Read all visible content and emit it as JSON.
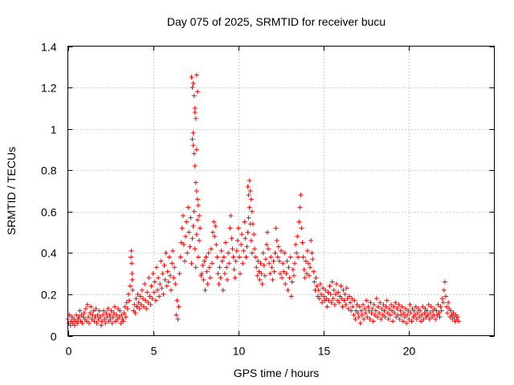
{
  "chart_data": {
    "type": "scatter",
    "title": "Day 075 of 2025, SRMTID for receiver bucu",
    "xlabel": "GPS time / hours",
    "ylabel": "SRMTID / TECUs",
    "xlim": [
      0,
      25
    ],
    "ylim": [
      0,
      1.4
    ],
    "xticks": [
      0,
      5,
      10,
      15,
      20
    ],
    "xtick_labels": [
      "0",
      "5",
      "10",
      "15",
      "20"
    ],
    "yticks": [
      0,
      0.2,
      0.4,
      0.6,
      0.8,
      1.0,
      1.2,
      1.4
    ],
    "ytick_labels": [
      "0",
      "0.2",
      "0.4",
      "0.6",
      "0.8",
      "1",
      "1.2",
      "1.4"
    ],
    "grid": true,
    "marker": "plus",
    "series": [
      {
        "name": "bucu",
        "color": "#ff0000",
        "x": [
          0.0,
          0.05,
          0.1,
          0.15,
          0.2,
          0.25,
          0.3,
          0.35,
          0.4,
          0.45,
          0.5,
          0.55,
          0.6,
          0.65,
          0.7,
          0.75,
          0.8,
          0.85,
          0.9,
          0.95,
          1.0,
          1.05,
          1.1,
          1.15,
          1.2,
          1.25,
          1.3,
          1.35,
          1.4,
          1.45,
          1.5,
          1.55,
          1.6,
          1.65,
          1.7,
          1.75,
          1.8,
          1.85,
          1.9,
          1.95,
          2.0,
          2.05,
          2.1,
          2.15,
          2.2,
          2.25,
          2.3,
          2.35,
          2.4,
          2.45,
          2.5,
          2.55,
          2.6,
          2.65,
          2.7,
          2.75,
          2.8,
          2.85,
          2.9,
          2.95,
          3.0,
          3.05,
          3.1,
          3.15,
          3.2,
          3.25,
          3.3,
          3.35,
          3.4,
          3.45,
          3.5,
          3.55,
          3.6,
          3.65,
          3.7,
          3.72,
          3.74,
          3.76,
          3.78,
          3.8,
          3.85,
          3.9,
          3.95,
          4.0,
          4.05,
          4.1,
          4.15,
          4.2,
          4.25,
          4.3,
          4.35,
          4.4,
          4.45,
          4.5,
          4.55,
          4.6,
          4.65,
          4.7,
          4.75,
          4.8,
          4.85,
          4.9,
          4.95,
          5.0,
          5.05,
          5.1,
          5.15,
          5.2,
          5.25,
          5.3,
          5.35,
          5.4,
          5.45,
          5.5,
          5.55,
          5.6,
          5.65,
          5.7,
          5.75,
          5.8,
          5.85,
          5.9,
          5.95,
          6.0,
          6.05,
          6.1,
          6.15,
          6.2,
          6.25,
          6.3,
          6.35,
          6.4,
          6.45,
          6.5,
          6.55,
          6.6,
          6.65,
          6.7,
          6.75,
          6.8,
          6.85,
          6.9,
          6.95,
          7.0,
          7.05,
          7.1,
          7.15,
          7.2,
          7.25,
          7.3,
          7.35,
          7.4,
          7.45,
          7.5,
          7.55,
          7.6,
          7.65,
          7.7,
          7.75,
          7.8,
          7.25,
          7.3,
          7.35,
          7.4,
          7.45,
          7.5,
          7.55,
          7.6,
          7.3,
          7.35,
          7.4,
          7.45,
          7.5,
          7.55,
          7.6,
          7.65,
          7.7,
          7.35,
          7.45,
          7.55,
          7.85,
          7.9,
          7.95,
          8.0,
          8.05,
          8.1,
          8.15,
          8.2,
          8.25,
          8.3,
          8.35,
          8.4,
          8.45,
          8.5,
          8.55,
          8.6,
          8.65,
          8.7,
          8.75,
          8.8,
          8.85,
          8.9,
          8.95,
          9.0,
          9.05,
          9.1,
          9.15,
          9.2,
          9.25,
          9.3,
          9.35,
          9.4,
          9.45,
          9.5,
          9.55,
          9.6,
          9.65,
          9.7,
          9.75,
          9.8,
          9.85,
          9.9,
          9.95,
          10.0,
          10.05,
          10.1,
          10.15,
          10.2,
          10.25,
          10.3,
          10.35,
          10.4,
          10.45,
          10.5,
          10.55,
          10.6,
          10.65,
          10.7,
          10.75,
          10.8,
          10.55,
          10.6,
          10.65,
          10.7,
          10.75,
          10.8,
          10.85,
          10.9,
          10.95,
          11.0,
          11.05,
          11.1,
          11.15,
          11.2,
          11.25,
          11.3,
          11.35,
          11.4,
          11.45,
          11.5,
          11.55,
          11.6,
          11.65,
          11.7,
          11.75,
          11.8,
          11.85,
          11.9,
          11.95,
          12.0,
          12.05,
          12.1,
          12.15,
          12.2,
          12.25,
          12.3,
          12.35,
          12.4,
          12.45,
          12.5,
          12.55,
          12.6,
          12.65,
          12.7,
          12.75,
          12.8,
          12.85,
          12.9,
          12.95,
          13.0,
          13.05,
          13.1,
          13.15,
          13.2,
          13.25,
          13.3,
          13.35,
          13.4,
          13.45,
          13.5,
          13.55,
          13.6,
          13.65,
          13.7,
          13.75,
          13.8,
          13.85,
          13.9,
          13.95,
          14.0,
          14.05,
          14.1,
          14.15,
          14.2,
          14.25,
          14.3,
          14.35,
          14.4,
          14.45,
          14.5,
          14.55,
          14.6,
          14.65,
          14.7,
          14.75,
          14.8,
          14.85,
          14.9,
          14.95,
          15.0,
          15.05,
          15.1,
          15.15,
          15.2,
          15.25,
          15.3,
          15.35,
          15.4,
          15.45,
          15.5,
          15.55,
          15.6,
          15.65,
          15.7,
          15.75,
          15.8,
          15.85,
          15.9,
          15.95,
          16.0,
          16.05,
          16.1,
          16.15,
          16.2,
          16.25,
          16.3,
          16.35,
          16.4,
          16.45,
          16.5,
          16.55,
          16.6,
          16.65,
          16.7,
          16.75,
          16.8,
          16.85,
          16.9,
          16.95,
          17.0,
          17.05,
          17.1,
          17.15,
          17.2,
          17.25,
          17.3,
          17.35,
          17.4,
          17.45,
          17.5,
          17.55,
          17.6,
          17.65,
          17.7,
          17.75,
          17.8,
          17.85,
          17.9,
          17.95,
          18.0,
          18.05,
          18.1,
          18.15,
          18.2,
          18.25,
          18.3,
          18.35,
          18.4,
          18.45,
          18.5,
          18.55,
          18.6,
          18.65,
          18.7,
          18.75,
          18.8,
          18.85,
          18.9,
          18.95,
          19.0,
          19.05,
          19.1,
          19.15,
          19.2,
          19.25,
          19.3,
          19.35,
          19.4,
          19.45,
          19.5,
          19.55,
          19.6,
          19.65,
          19.7,
          19.75,
          19.8,
          19.85,
          19.9,
          19.95,
          20.0,
          20.05,
          20.1,
          20.15,
          20.2,
          20.25,
          20.3,
          20.35,
          20.4,
          20.45,
          20.5,
          20.55,
          20.6,
          20.65,
          20.7,
          20.75,
          20.8,
          20.85,
          20.9,
          20.95,
          21.0,
          21.05,
          21.1,
          21.15,
          21.2,
          21.25,
          21.3,
          21.35,
          21.4,
          21.45,
          21.5,
          21.55,
          21.6,
          21.65,
          21.7,
          21.75,
          21.8,
          21.85,
          21.9,
          21.95,
          22.0,
          22.05,
          22.1,
          22.15,
          22.2,
          22.25,
          22.3,
          22.35,
          22.4,
          22.45,
          22.5,
          22.55,
          22.6,
          22.65,
          22.7,
          22.75,
          22.8,
          22.85,
          22.9
        ],
        "y": [
          0.08,
          0.06,
          0.1,
          0.05,
          0.07,
          0.09,
          0.06,
          0.08,
          0.05,
          0.07,
          0.1,
          0.06,
          0.08,
          0.09,
          0.12,
          0.07,
          0.1,
          0.06,
          0.09,
          0.11,
          0.08,
          0.13,
          0.07,
          0.15,
          0.09,
          0.06,
          0.11,
          0.14,
          0.08,
          0.1,
          0.12,
          0.07,
          0.09,
          0.13,
          0.06,
          0.1,
          0.08,
          0.12,
          0.09,
          0.05,
          0.07,
          0.1,
          0.12,
          0.08,
          0.06,
          0.11,
          0.09,
          0.13,
          0.07,
          0.1,
          0.08,
          0.12,
          0.06,
          0.09,
          0.11,
          0.14,
          0.07,
          0.1,
          0.08,
          0.13,
          0.09,
          0.12,
          0.06,
          0.1,
          0.08,
          0.07,
          0.11,
          0.14,
          0.09,
          0.16,
          0.13,
          0.2,
          0.17,
          0.24,
          0.38,
          0.41,
          0.35,
          0.3,
          0.27,
          0.22,
          0.12,
          0.15,
          0.11,
          0.18,
          0.14,
          0.2,
          0.16,
          0.13,
          0.19,
          0.15,
          0.22,
          0.18,
          0.14,
          0.25,
          0.17,
          0.13,
          0.21,
          0.16,
          0.28,
          0.19,
          0.15,
          0.24,
          0.18,
          0.3,
          0.21,
          0.26,
          0.17,
          0.33,
          0.22,
          0.28,
          0.19,
          0.25,
          0.36,
          0.23,
          0.3,
          0.2,
          0.34,
          0.27,
          0.4,
          0.24,
          0.31,
          0.26,
          0.38,
          0.29,
          0.22,
          0.35,
          0.41,
          0.28,
          0.33,
          0.25,
          0.1,
          0.17,
          0.08,
          0.14,
          0.3,
          0.38,
          0.45,
          0.52,
          0.58,
          0.44,
          0.36,
          0.48,
          0.55,
          0.4,
          0.62,
          0.5,
          0.43,
          0.57,
          0.35,
          0.47,
          0.53,
          0.6,
          0.42,
          0.33,
          0.49,
          0.56,
          0.38,
          0.46,
          0.52,
          0.29,
          1.25,
          1.2,
          1.22,
          1.16,
          1.1,
          1.05,
          1.26,
          1.18,
          0.95,
          0.92,
          0.88,
          0.82,
          0.74,
          0.7,
          0.66,
          0.63,
          0.58,
          0.98,
          1.08,
          0.9,
          0.3,
          0.34,
          0.27,
          0.36,
          0.22,
          0.38,
          0.31,
          0.25,
          0.4,
          0.33,
          0.28,
          0.42,
          0.35,
          0.5,
          0.55,
          0.48,
          0.53,
          0.44,
          0.38,
          0.3,
          0.25,
          0.33,
          0.28,
          0.41,
          0.36,
          0.22,
          0.38,
          0.3,
          0.45,
          0.33,
          0.27,
          0.4,
          0.35,
          0.52,
          0.58,
          0.47,
          0.42,
          0.38,
          0.32,
          0.28,
          0.36,
          0.41,
          0.46,
          0.52,
          0.38,
          0.3,
          0.44,
          0.49,
          0.35,
          0.41,
          0.55,
          0.47,
          0.38,
          0.43,
          0.5,
          0.57,
          0.62,
          0.54,
          0.46,
          0.4,
          0.72,
          0.68,
          0.75,
          0.7,
          0.66,
          0.6,
          0.54,
          0.49,
          0.42,
          0.38,
          0.33,
          0.29,
          0.36,
          0.31,
          0.27,
          0.35,
          0.3,
          0.25,
          0.4,
          0.34,
          0.29,
          0.37,
          0.44,
          0.5,
          0.42,
          0.35,
          0.3,
          0.38,
          0.33,
          0.27,
          0.36,
          0.31,
          0.4,
          0.52,
          0.46,
          0.38,
          0.43,
          0.36,
          0.3,
          0.41,
          0.28,
          0.35,
          0.31,
          0.4,
          0.25,
          0.3,
          0.36,
          0.22,
          0.33,
          0.28,
          0.38,
          0.19,
          0.26,
          0.32,
          0.29,
          0.35,
          0.44,
          0.4,
          0.48,
          0.38,
          0.55,
          0.62,
          0.68,
          0.52,
          0.45,
          0.38,
          0.32,
          0.28,
          0.36,
          0.3,
          0.41,
          0.35,
          0.29,
          0.33,
          0.46,
          0.4,
          0.37,
          0.31,
          0.26,
          0.22,
          0.28,
          0.24,
          0.19,
          0.22,
          0.18,
          0.25,
          0.2,
          0.16,
          0.23,
          0.19,
          0.17,
          0.22,
          0.18,
          0.14,
          0.21,
          0.17,
          0.24,
          0.2,
          0.16,
          0.26,
          0.18,
          0.22,
          0.15,
          0.2,
          0.25,
          0.17,
          0.21,
          0.16,
          0.19,
          0.24,
          0.18,
          0.14,
          0.22,
          0.17,
          0.2,
          0.15,
          0.23,
          0.18,
          0.13,
          0.19,
          0.16,
          0.12,
          0.18,
          0.14,
          0.1,
          0.17,
          0.08,
          0.12,
          0.15,
          0.11,
          0.09,
          0.14,
          0.06,
          0.12,
          0.1,
          0.15,
          0.08,
          0.13,
          0.11,
          0.17,
          0.09,
          0.14,
          0.12,
          0.08,
          0.16,
          0.11,
          0.13,
          0.07,
          0.15,
          0.1,
          0.12,
          0.18,
          0.09,
          0.14,
          0.11,
          0.16,
          0.08,
          0.13,
          0.1,
          0.15,
          0.12,
          0.09,
          0.14,
          0.17,
          0.11,
          0.08,
          0.13,
          0.1,
          0.15,
          0.12,
          0.07,
          0.14,
          0.11,
          0.16,
          0.09,
          0.13,
          0.1,
          0.15,
          0.08,
          0.12,
          0.1,
          0.14,
          0.07,
          0.11,
          0.09,
          0.13,
          0.06,
          0.1,
          0.12,
          0.08,
          0.15,
          0.11,
          0.07,
          0.13,
          0.09,
          0.12,
          0.1,
          0.14,
          0.08,
          0.11,
          0.13,
          0.09,
          0.12,
          0.07,
          0.1,
          0.14,
          0.08,
          0.11,
          0.13,
          0.09,
          0.12,
          0.1,
          0.15,
          0.08,
          0.11,
          0.14,
          0.09,
          0.12,
          0.1,
          0.13,
          0.08,
          0.12,
          0.1,
          0.15,
          0.11,
          0.09,
          0.14,
          0.12,
          0.18,
          0.16,
          0.22,
          0.26,
          0.19,
          0.14,
          0.11,
          0.16,
          0.13,
          0.09,
          0.12,
          0.1,
          0.08,
          0.11,
          0.09,
          0.07,
          0.1,
          0.08,
          0.09,
          0.07
        ]
      }
    ]
  }
}
